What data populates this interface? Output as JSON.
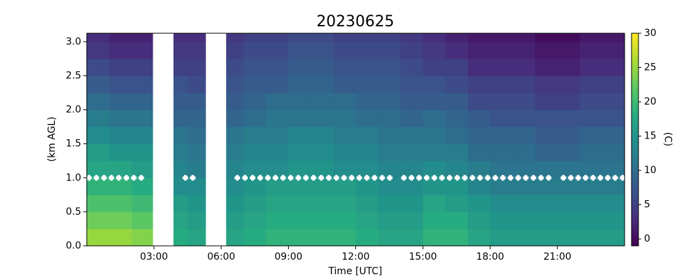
{
  "chart_data": {
    "type": "heatmap",
    "title": "20230625",
    "xlabel": "Time [UTC]",
    "ylabel": "(km AGL)",
    "colorbar_label": "(C)",
    "colormap": "viridis",
    "xlim": [
      0,
      24
    ],
    "ylim": [
      0,
      3.125
    ],
    "zlim": [
      -1,
      30
    ],
    "xticks": [
      {
        "value": 3,
        "label": "03:00"
      },
      {
        "value": 6,
        "label": "06:00"
      },
      {
        "value": 9,
        "label": "09:00"
      },
      {
        "value": 12,
        "label": "12:00"
      },
      {
        "value": 15,
        "label": "15:00"
      },
      {
        "value": 18,
        "label": "18:00"
      },
      {
        "value": 21,
        "label": "21:00"
      }
    ],
    "yticks": [
      {
        "value": 0,
        "label": "0.0"
      },
      0.5,
      {
        "value": 1,
        "label": "1.0"
      },
      1.5,
      {
        "value": 2,
        "label": "2.0"
      },
      2.5,
      {
        "value": 3,
        "label": "3.0"
      }
    ],
    "zticks": [
      0,
      5,
      10,
      15,
      20,
      25,
      30
    ],
    "x_edges": [
      0,
      1,
      2,
      2.94,
      3.87,
      4.5,
      5.3,
      6.22,
      7,
      8,
      9,
      10,
      11,
      12,
      13,
      14,
      15,
      16,
      17,
      18,
      19,
      20,
      21,
      22,
      23,
      24
    ],
    "y_edges": [
      0,
      0.25,
      0.5,
      0.75,
      1,
      1.25,
      1.5,
      1.75,
      2,
      2.25,
      2.5,
      2.75,
      3,
      3.125
    ],
    "z": [
      [
        25,
        23,
        21,
        19,
        17,
        16,
        14,
        12,
        10,
        8,
        6,
        4,
        3
      ],
      [
        25,
        23,
        21,
        19,
        17,
        15,
        13,
        11,
        9,
        7,
        5,
        3,
        2
      ],
      [
        24,
        22,
        20,
        18,
        16,
        15,
        13,
        11,
        9,
        7,
        5,
        3,
        2
      ],
      null,
      [
        18,
        17,
        16,
        14,
        13,
        12,
        11,
        9,
        8,
        7,
        5,
        4,
        3
      ],
      [
        17,
        16,
        15,
        14,
        12,
        11,
        10,
        9,
        8,
        6,
        5,
        4,
        3
      ],
      null,
      [
        17,
        16,
        15,
        14,
        13,
        12,
        11,
        9,
        8,
        7,
        6,
        5,
        4
      ],
      [
        18,
        17,
        16,
        15,
        14,
        13,
        12,
        10,
        9,
        8,
        7,
        6,
        5
      ],
      [
        19,
        18,
        17,
        16,
        14,
        13,
        12,
        11,
        10,
        8,
        7,
        6,
        5
      ],
      [
        19,
        18,
        17,
        16,
        15,
        14,
        13,
        11,
        10,
        9,
        8,
        7,
        6
      ],
      [
        19,
        18,
        17,
        16,
        15,
        14,
        13,
        11,
        10,
        9,
        8,
        7,
        6
      ],
      [
        19,
        18,
        17,
        16,
        14,
        13,
        12,
        11,
        10,
        8,
        7,
        6,
        5
      ],
      [
        18,
        17,
        16,
        15,
        14,
        13,
        12,
        10,
        9,
        8,
        7,
        6,
        5
      ],
      [
        17,
        16,
        15,
        14,
        13,
        12,
        11,
        10,
        9,
        8,
        7,
        6,
        5
      ],
      [
        17,
        16,
        15,
        14,
        13,
        12,
        11,
        9,
        8,
        7,
        6,
        5,
        4
      ],
      [
        19,
        18,
        17,
        15,
        14,
        12,
        11,
        10,
        8,
        7,
        5,
        4,
        3
      ],
      [
        19,
        18,
        16,
        15,
        13,
        12,
        10,
        9,
        8,
        6,
        5,
        3,
        2
      ],
      [
        17,
        16,
        15,
        13,
        12,
        10,
        9,
        8,
        6,
        5,
        3,
        2,
        1
      ],
      [
        16,
        15,
        14,
        12,
        11,
        10,
        9,
        7,
        6,
        5,
        3,
        2,
        1
      ],
      [
        16,
        15,
        14,
        12,
        11,
        10,
        9,
        7,
        6,
        5,
        3,
        2,
        1
      ],
      [
        16,
        15,
        14,
        12,
        11,
        9,
        8,
        7,
        5,
        4,
        2,
        1,
        0
      ],
      [
        16,
        15,
        14,
        12,
        11,
        9,
        8,
        7,
        5,
        4,
        2,
        1,
        0
      ],
      [
        16,
        15,
        14,
        12,
        11,
        10,
        9,
        7,
        6,
        5,
        3,
        2,
        1
      ],
      [
        16,
        15,
        14,
        12,
        11,
        10,
        9,
        7,
        6,
        5,
        3,
        2,
        1
      ]
    ],
    "markers": {
      "color": "#ffffff",
      "x": [
        0.1,
        0.43,
        0.77,
        1.1,
        1.43,
        1.77,
        2.1,
        2.43,
        4.4,
        4.73,
        6.72,
        7.06,
        7.4,
        7.74,
        8.08,
        8.42,
        8.76,
        9.1,
        9.44,
        9.78,
        10.12,
        10.46,
        10.8,
        11.14,
        11.48,
        11.82,
        12.16,
        12.5,
        12.84,
        13.18,
        13.52,
        14.15,
        14.49,
        14.83,
        15.17,
        15.51,
        15.85,
        16.19,
        16.53,
        16.87,
        17.21,
        17.55,
        17.89,
        18.23,
        18.57,
        18.91,
        19.25,
        19.59,
        19.93,
        20.27,
        20.61,
        21.27,
        21.6,
        21.93,
        22.26,
        22.59,
        22.92,
        23.25,
        23.58,
        23.91
      ],
      "values": [
        1,
        1,
        1,
        1,
        1,
        1,
        1,
        1,
        1,
        1,
        1,
        1,
        1,
        1,
        1,
        1,
        1,
        1,
        1,
        1,
        1,
        1,
        1,
        1,
        1,
        1,
        1,
        1,
        1,
        1,
        1,
        1,
        1,
        1,
        1,
        1,
        1,
        1,
        1,
        1,
        1,
        1,
        1,
        1,
        1,
        1,
        1,
        1,
        1,
        1,
        1,
        1,
        1,
        1,
        1,
        1,
        1,
        1,
        1,
        1
      ]
    }
  }
}
